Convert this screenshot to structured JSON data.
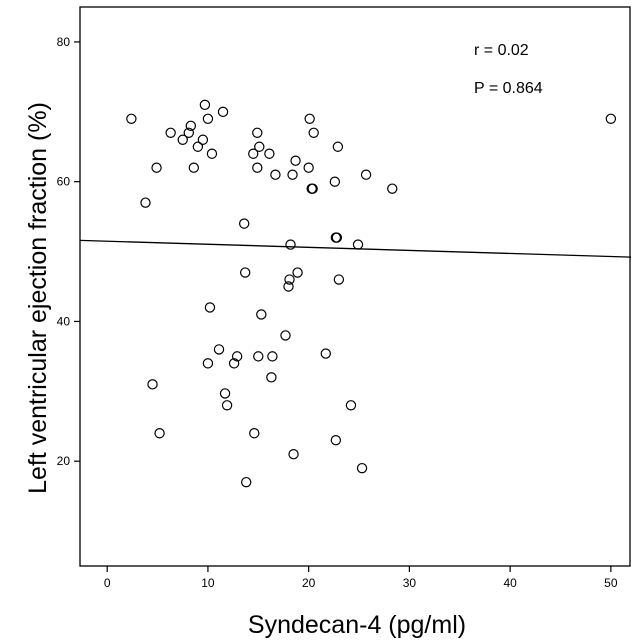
{
  "chart_data": {
    "type": "scatter",
    "xlabel": "Syndecan-4 (pg/ml)",
    "ylabel": "Left ventricular ejection fraction (%)",
    "xlim": [
      -2.7,
      52
    ],
    "ylim": [
      5,
      85
    ],
    "xticks": [
      0,
      10,
      20,
      30,
      40,
      50
    ],
    "yticks": [
      20,
      40,
      60,
      80
    ],
    "grid": false,
    "annotations": [
      "r = 0.02",
      "P = 0.864"
    ],
    "fit_line": {
      "x": [
        -2.7,
        52
      ],
      "y": [
        51.6,
        49.2
      ]
    },
    "points": [
      {
        "x": 2.4,
        "y": 69
      },
      {
        "x": 3.8,
        "y": 57
      },
      {
        "x": 4.5,
        "y": 31
      },
      {
        "x": 4.9,
        "y": 62
      },
      {
        "x": 5.2,
        "y": 24
      },
      {
        "x": 6.3,
        "y": 67
      },
      {
        "x": 7.5,
        "y": 66
      },
      {
        "x": 8.1,
        "y": 67
      },
      {
        "x": 8.3,
        "y": 68
      },
      {
        "x": 8.6,
        "y": 62
      },
      {
        "x": 9.0,
        "y": 65
      },
      {
        "x": 9.5,
        "y": 66
      },
      {
        "x": 9.7,
        "y": 71
      },
      {
        "x": 10.0,
        "y": 69
      },
      {
        "x": 10.0,
        "y": 34
      },
      {
        "x": 10.2,
        "y": 42
      },
      {
        "x": 10.4,
        "y": 64
      },
      {
        "x": 11.1,
        "y": 36
      },
      {
        "x": 11.5,
        "y": 70
      },
      {
        "x": 11.7,
        "y": 29.7
      },
      {
        "x": 11.9,
        "y": 28
      },
      {
        "x": 12.6,
        "y": 34
      },
      {
        "x": 12.9,
        "y": 35
      },
      {
        "x": 13.6,
        "y": 54
      },
      {
        "x": 13.7,
        "y": 47
      },
      {
        "x": 13.8,
        "y": 17
      },
      {
        "x": 14.5,
        "y": 64
      },
      {
        "x": 14.6,
        "y": 24
      },
      {
        "x": 14.9,
        "y": 62
      },
      {
        "x": 14.9,
        "y": 67
      },
      {
        "x": 15.0,
        "y": 35
      },
      {
        "x": 15.1,
        "y": 65
      },
      {
        "x": 15.3,
        "y": 41
      },
      {
        "x": 16.1,
        "y": 64
      },
      {
        "x": 16.3,
        "y": 32
      },
      {
        "x": 16.4,
        "y": 35
      },
      {
        "x": 16.7,
        "y": 61
      },
      {
        "x": 17.7,
        "y": 38
      },
      {
        "x": 18.0,
        "y": 45
      },
      {
        "x": 18.1,
        "y": 46
      },
      {
        "x": 18.2,
        "y": 51
      },
      {
        "x": 18.4,
        "y": 61
      },
      {
        "x": 18.5,
        "y": 21
      },
      {
        "x": 18.7,
        "y": 63
      },
      {
        "x": 18.9,
        "y": 47
      },
      {
        "x": 20.0,
        "y": 62
      },
      {
        "x": 20.1,
        "y": 69
      },
      {
        "x": 20.3,
        "y": 59
      },
      {
        "x": 20.4,
        "y": 59
      },
      {
        "x": 20.5,
        "y": 67
      },
      {
        "x": 21.7,
        "y": 35.4
      },
      {
        "x": 22.6,
        "y": 60
      },
      {
        "x": 22.7,
        "y": 23
      },
      {
        "x": 22.7,
        "y": 52
      },
      {
        "x": 22.8,
        "y": 52
      },
      {
        "x": 22.9,
        "y": 65
      },
      {
        "x": 23.0,
        "y": 46
      },
      {
        "x": 24.2,
        "y": 28
      },
      {
        "x": 24.9,
        "y": 51
      },
      {
        "x": 25.3,
        "y": 19
      },
      {
        "x": 25.7,
        "y": 61
      },
      {
        "x": 28.3,
        "y": 59
      },
      {
        "x": 50.0,
        "y": 69
      }
    ]
  }
}
